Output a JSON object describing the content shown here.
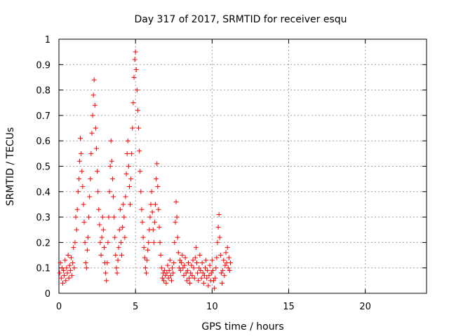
{
  "chart_data": {
    "type": "scatter",
    "title": "Day 317 of 2017, SRMTID for receiver esqu",
    "xlabel": "GPS time / hours",
    "ylabel": "SRMTID / TECUs",
    "xlim": [
      0,
      24
    ],
    "ylim": [
      0,
      1
    ],
    "x_ticks": [
      0,
      5,
      10,
      15,
      20
    ],
    "x_tick_labels": [
      "0",
      "5",
      "10",
      "15",
      "20"
    ],
    "y_ticks": [
      0,
      0.1,
      0.2,
      0.3,
      0.4,
      0.5,
      0.6,
      0.7,
      0.8,
      0.9,
      1
    ],
    "y_tick_labels": [
      "0",
      "0.1",
      "0.2",
      "0.3",
      "0.4",
      "0.5",
      "0.6",
      "0.7",
      "0.8",
      "0.9",
      "1"
    ],
    "grid": true,
    "marker": "plus",
    "color": "#ff0000",
    "series": [
      {
        "values": [
          [
            0.05,
            0.08
          ],
          [
            0.1,
            0.12
          ],
          [
            0.15,
            0.06
          ],
          [
            0.2,
            0.1
          ],
          [
            0.25,
            0.04
          ],
          [
            0.3,
            0.09
          ],
          [
            0.35,
            0.07
          ],
          [
            0.4,
            0.13
          ],
          [
            0.45,
            0.05
          ],
          [
            0.5,
            0.1
          ],
          [
            0.55,
            0.08
          ],
          [
            0.6,
            0.15
          ],
          [
            0.65,
            0.06
          ],
          [
            0.7,
            0.11
          ],
          [
            0.75,
            0.09
          ],
          [
            0.8,
            0.14
          ],
          [
            0.85,
            0.07
          ],
          [
            0.9,
            0.12
          ],
          [
            0.95,
            0.18
          ],
          [
            1.0,
            0.1
          ],
          [
            1.05,
            0.2
          ],
          [
            1.1,
            0.3
          ],
          [
            1.15,
            0.25
          ],
          [
            1.2,
            0.33
          ],
          [
            1.25,
            0.4
          ],
          [
            1.3,
            0.45
          ],
          [
            1.35,
            0.52
          ],
          [
            1.4,
            0.61
          ],
          [
            1.45,
            0.55
          ],
          [
            1.5,
            0.48
          ],
          [
            1.55,
            0.42
          ],
          [
            1.6,
            0.35
          ],
          [
            1.65,
            0.28
          ],
          [
            1.7,
            0.2
          ],
          [
            1.75,
            0.12
          ],
          [
            1.8,
            0.1
          ],
          [
            1.85,
            0.17
          ],
          [
            1.9,
            0.22
          ],
          [
            1.95,
            0.3
          ],
          [
            2.0,
            0.38
          ],
          [
            2.05,
            0.45
          ],
          [
            2.1,
            0.55
          ],
          [
            2.15,
            0.63
          ],
          [
            2.2,
            0.7
          ],
          [
            2.25,
            0.78
          ],
          [
            2.3,
            0.84
          ],
          [
            2.35,
            0.74
          ],
          [
            2.4,
            0.65
          ],
          [
            2.45,
            0.57
          ],
          [
            2.5,
            0.48
          ],
          [
            2.55,
            0.4
          ],
          [
            2.6,
            0.33
          ],
          [
            2.65,
            0.27
          ],
          [
            2.7,
            0.2
          ],
          [
            2.75,
            0.15
          ],
          [
            2.8,
            0.22
          ],
          [
            2.85,
            0.3
          ],
          [
            2.9,
            0.25
          ],
          [
            2.95,
            0.18
          ],
          [
            3.0,
            0.12
          ],
          [
            3.05,
            0.08
          ],
          [
            3.1,
            0.05
          ],
          [
            3.15,
            0.12
          ],
          [
            3.2,
            0.2
          ],
          [
            3.25,
            0.3
          ],
          [
            3.3,
            0.4
          ],
          [
            3.35,
            0.5
          ],
          [
            3.4,
            0.6
          ],
          [
            3.45,
            0.52
          ],
          [
            3.5,
            0.45
          ],
          [
            3.55,
            0.38
          ],
          [
            3.6,
            0.3
          ],
          [
            3.65,
            0.22
          ],
          [
            3.7,
            0.15
          ],
          [
            3.75,
            0.1
          ],
          [
            3.8,
            0.08
          ],
          [
            3.85,
            0.13
          ],
          [
            3.9,
            0.18
          ],
          [
            3.95,
            0.25
          ],
          [
            4.0,
            0.33
          ],
          [
            4.05,
            0.2
          ],
          [
            4.1,
            0.15
          ],
          [
            4.15,
            0.26
          ],
          [
            4.2,
            0.35
          ],
          [
            4.25,
            0.3
          ],
          [
            4.3,
            0.22
          ],
          [
            4.35,
            0.38
          ],
          [
            4.4,
            0.47
          ],
          [
            4.45,
            0.55
          ],
          [
            4.5,
            0.6
          ],
          [
            4.55,
            0.5
          ],
          [
            4.6,
            0.42
          ],
          [
            4.65,
            0.35
          ],
          [
            4.7,
            0.45
          ],
          [
            4.75,
            0.55
          ],
          [
            4.8,
            0.65
          ],
          [
            4.85,
            0.75
          ],
          [
            4.9,
            0.85
          ],
          [
            4.95,
            0.92
          ],
          [
            5.0,
            0.95
          ],
          [
            5.05,
            0.88
          ],
          [
            5.1,
            0.8
          ],
          [
            5.15,
            0.72
          ],
          [
            5.2,
            0.65
          ],
          [
            5.25,
            0.56
          ],
          [
            5.3,
            0.48
          ],
          [
            5.35,
            0.4
          ],
          [
            5.4,
            0.33
          ],
          [
            5.45,
            0.28
          ],
          [
            5.5,
            0.22
          ],
          [
            5.55,
            0.18
          ],
          [
            5.6,
            0.14
          ],
          [
            5.65,
            0.1
          ],
          [
            5.7,
            0.08
          ],
          [
            5.75,
            0.13
          ],
          [
            5.8,
            0.17
          ],
          [
            5.85,
            0.2
          ],
          [
            5.9,
            0.25
          ],
          [
            5.95,
            0.3
          ],
          [
            6.0,
            0.35
          ],
          [
            6.05,
            0.4
          ],
          [
            6.1,
            0.32
          ],
          [
            6.15,
            0.25
          ],
          [
            6.2,
            0.2
          ],
          [
            6.25,
            0.28
          ],
          [
            6.3,
            0.35
          ],
          [
            6.35,
            0.45
          ],
          [
            6.4,
            0.51
          ],
          [
            6.45,
            0.42
          ],
          [
            6.5,
            0.33
          ],
          [
            6.55,
            0.26
          ],
          [
            6.6,
            0.2
          ],
          [
            6.65,
            0.15
          ],
          [
            6.7,
            0.1
          ],
          [
            6.75,
            0.06
          ],
          [
            6.8,
            0.08
          ],
          [
            6.85,
            0.05
          ],
          [
            6.9,
            0.09
          ],
          [
            6.95,
            0.07
          ],
          [
            7.0,
            0.04
          ],
          [
            7.05,
            0.08
          ],
          [
            7.1,
            0.11
          ],
          [
            7.15,
            0.06
          ],
          [
            7.2,
            0.09
          ],
          [
            7.25,
            0.13
          ],
          [
            7.3,
            0.07
          ],
          [
            7.35,
            0.05
          ],
          [
            7.4,
            0.1
          ],
          [
            7.45,
            0.08
          ],
          [
            7.5,
            0.12
          ],
          [
            7.55,
            0.2
          ],
          [
            7.6,
            0.28
          ],
          [
            7.65,
            0.36
          ],
          [
            7.7,
            0.3
          ],
          [
            7.75,
            0.22
          ],
          [
            7.8,
            0.16
          ],
          [
            7.85,
            0.1
          ],
          [
            7.9,
            0.13
          ],
          [
            7.95,
            0.09
          ],
          [
            8.0,
            0.12
          ],
          [
            8.05,
            0.15
          ],
          [
            8.1,
            0.1
          ],
          [
            8.15,
            0.07
          ],
          [
            8.2,
            0.11
          ],
          [
            8.25,
            0.14
          ],
          [
            8.3,
            0.08
          ],
          [
            8.35,
            0.05
          ],
          [
            8.4,
            0.09
          ],
          [
            8.45,
            0.12
          ],
          [
            8.5,
            0.06
          ],
          [
            8.55,
            0.04
          ],
          [
            8.6,
            0.08
          ],
          [
            8.65,
            0.11
          ],
          [
            8.7,
            0.07
          ],
          [
            8.75,
            0.13
          ],
          [
            8.8,
            0.1
          ],
          [
            8.85,
            0.06
          ],
          [
            8.9,
            0.14
          ],
          [
            8.95,
            0.18
          ],
          [
            9.0,
            0.12
          ],
          [
            9.05,
            0.08
          ],
          [
            9.1,
            0.05
          ],
          [
            9.15,
            0.1
          ],
          [
            9.2,
            0.15
          ],
          [
            9.25,
            0.09
          ],
          [
            9.3,
            0.06
          ],
          [
            9.35,
            0.12
          ],
          [
            9.4,
            0.08
          ],
          [
            9.45,
            0.04
          ],
          [
            9.5,
            0.07
          ],
          [
            9.55,
            0.1
          ],
          [
            9.6,
            0.13
          ],
          [
            9.65,
            0.06
          ],
          [
            9.7,
            0.09
          ],
          [
            9.75,
            0.03
          ],
          [
            9.8,
            0.07
          ],
          [
            9.85,
            0.11
          ],
          [
            9.9,
            0.05
          ],
          [
            9.95,
            0.08
          ],
          [
            10.0,
            0.13
          ],
          [
            10.05,
            0.09
          ],
          [
            10.1,
            0.05
          ],
          [
            10.15,
            0.02
          ],
          [
            10.2,
            0.06
          ],
          [
            10.25,
            0.1
          ],
          [
            10.3,
            0.14
          ],
          [
            10.35,
            0.2
          ],
          [
            10.4,
            0.26
          ],
          [
            10.45,
            0.31
          ],
          [
            10.5,
            0.22
          ],
          [
            10.55,
            0.15
          ],
          [
            10.6,
            0.08
          ],
          [
            10.65,
            0.04
          ],
          [
            10.7,
            0.09
          ],
          [
            10.75,
            0.13
          ],
          [
            10.8,
            0.07
          ],
          [
            10.85,
            0.11
          ],
          [
            10.9,
            0.16
          ],
          [
            10.95,
            0.12
          ],
          [
            11.0,
            0.18
          ],
          [
            11.05,
            0.1
          ],
          [
            11.1,
            0.14
          ],
          [
            11.15,
            0.09
          ],
          [
            11.2,
            0.12
          ]
        ]
      }
    ]
  }
}
